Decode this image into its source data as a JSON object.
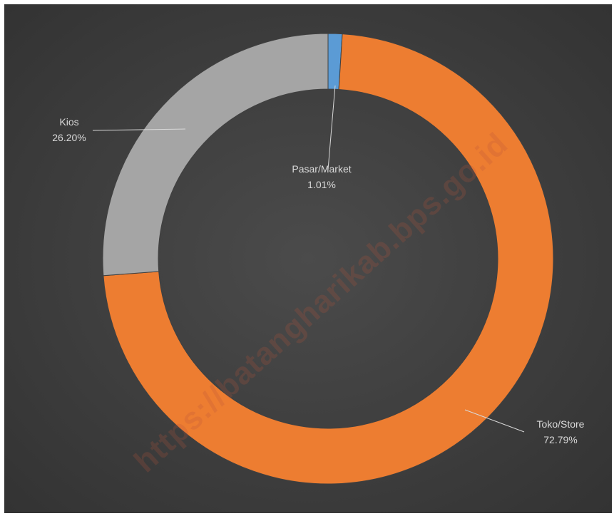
{
  "chart_data": {
    "type": "pie",
    "variant": "doughnut",
    "categories": [
      "Pasar/Market",
      "Toko/Store",
      "Kios"
    ],
    "values": [
      1.01,
      72.79,
      26.2
    ],
    "value_labels": [
      "1.01%",
      "72.79%",
      "26.20%"
    ],
    "colors": [
      "#5b9bd5",
      "#ed7d31",
      "#a5a5a5"
    ],
    "start_angle_deg": 0,
    "legend": "none",
    "title": ""
  },
  "watermark": "https://batangharikab.bps.go.id",
  "colors": {
    "background": "#404040",
    "label_text": "#d9d9d9",
    "leader_line": "#d9d9d9"
  }
}
